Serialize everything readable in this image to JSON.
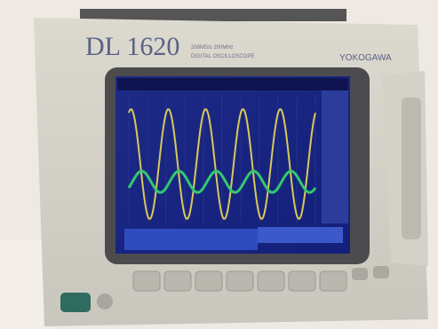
{
  "brand": {
    "model": "DL 1620",
    "spec": "200MS/s 200MHz",
    "description": "DIGITAL OSCILLOSCOPE",
    "maker": "YOKOGAWA"
  }
}
